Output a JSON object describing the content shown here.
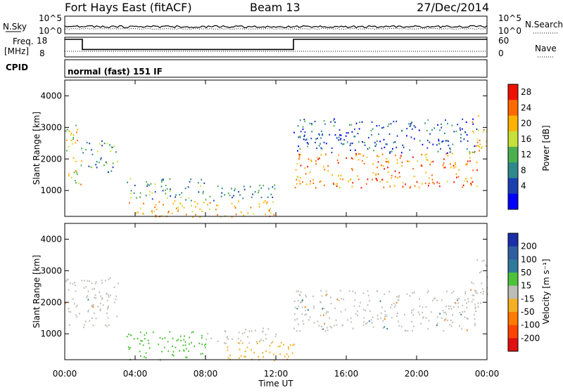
{
  "header": {
    "station": "Fort Hays East (fitACF)",
    "beam": "Beam 13",
    "date": "27/Dec/2014"
  },
  "status_panels": {
    "nsky_label": "N.Sky",
    "nsky_ticks": [
      "10^5",
      "10^0"
    ],
    "nsearch_label": "N.Search",
    "nsearch_ticks": [
      "10^5",
      "10^0"
    ],
    "freq_label_1": "Freq.",
    "freq_label_2": "[MHz]",
    "freq_ticks": [
      "18",
      "8"
    ],
    "nave_label": "Nave",
    "nave_ticks": [
      "60",
      "0"
    ],
    "cpid_label": "CPID",
    "cpid_text": "normal (fast) 151 IF"
  },
  "axes": {
    "x_label": "Time UT",
    "x_ticks": [
      "00:00",
      "04:00",
      "08:00",
      "12:00",
      "16:00",
      "20:00",
      "00:00"
    ],
    "y_label": "Slant Range [km]",
    "y_ticks": [
      "1000",
      "2000",
      "3000",
      "4000"
    ]
  },
  "colorbars": {
    "power_label": "Power [dB]",
    "power_ticks": [
      "28",
      "24",
      "20",
      "16",
      "12",
      "8",
      "4"
    ],
    "velocity_label": "Velocity [m s⁻¹]",
    "velocity_ticks": [
      "200",
      "100",
      "50",
      "15",
      "-15",
      "-50",
      "-100",
      "-200"
    ]
  },
  "chart_data": [
    {
      "type": "heatmap",
      "title": "Fort Hays East (fitACF) Beam 13 27/Dec/2014",
      "quantity": "Power",
      "xlabel": "Time UT",
      "ylabel": "Slant Range [km]",
      "x_range_hours": [
        0,
        24
      ],
      "y_range_km": [
        180,
        4500
      ],
      "colorbar": {
        "label": "Power [dB]",
        "range": [
          0,
          32
        ],
        "ticks": [
          4,
          8,
          12,
          16,
          20,
          24,
          28
        ]
      },
      "scatter_regions": [
        {
          "t_start": 0.0,
          "t_end": 1.0,
          "range_min": 1200,
          "range_max": 3100,
          "mean_power": 20
        },
        {
          "t_start": 1.0,
          "t_end": 3.0,
          "range_min": 1600,
          "range_max": 2600,
          "mean_power": 14
        },
        {
          "t_start": 3.5,
          "t_end": 8.0,
          "range_min": 700,
          "range_max": 1400,
          "mean_power": 14
        },
        {
          "t_start": 3.5,
          "t_end": 12.0,
          "range_min": 180,
          "range_max": 700,
          "mean_power": 24
        },
        {
          "t_start": 8.0,
          "t_end": 12.0,
          "range_min": 700,
          "range_max": 1200,
          "mean_power": 12
        },
        {
          "t_start": 13.0,
          "t_end": 23.5,
          "range_min": 1100,
          "range_max": 2200,
          "mean_power": 26
        },
        {
          "t_start": 13.0,
          "t_end": 23.5,
          "range_min": 2200,
          "range_max": 3300,
          "mean_power": 10
        },
        {
          "t_start": 23.0,
          "t_end": 24.0,
          "range_min": 2200,
          "range_max": 3400,
          "mean_power": 24
        }
      ]
    },
    {
      "type": "heatmap",
      "quantity": "Velocity",
      "xlabel": "Time UT",
      "ylabel": "Slant Range [km]",
      "x_range_hours": [
        0,
        24
      ],
      "y_range_km": [
        180,
        4500
      ],
      "colorbar": {
        "label": "Velocity [m s⁻¹]",
        "range": [
          -200,
          200
        ],
        "ticks": [
          200,
          100,
          50,
          15,
          -15,
          -50,
          -100,
          -200
        ]
      },
      "scatter_regions": [
        {
          "t_start": 0.0,
          "t_end": 3.0,
          "range_min": 1200,
          "range_max": 2800,
          "velocity": "ground scatter (|v|<15)"
        },
        {
          "t_start": 3.5,
          "t_end": 8.0,
          "range_min": 180,
          "range_max": 1100,
          "velocity": 30
        },
        {
          "t_start": 8.0,
          "t_end": 12.0,
          "range_min": 700,
          "range_max": 1200,
          "velocity": "ground scatter (|v|<15)"
        },
        {
          "t_start": 9.0,
          "t_end": 13.0,
          "range_min": 180,
          "range_max": 800,
          "velocity": -40
        },
        {
          "t_start": 13.0,
          "t_end": 23.5,
          "range_min": 1100,
          "range_max": 2400,
          "velocity": "ground scatter (|v|<15)"
        },
        {
          "t_start": 23.0,
          "t_end": 24.0,
          "range_min": 2000,
          "range_max": 3400,
          "velocity": "ground scatter (|v|<15)"
        }
      ]
    },
    {
      "type": "line",
      "quantity": "Frequency",
      "xlabel": "Time UT",
      "ylabel": "Freq. [MHz]",
      "y_range": [
        8,
        18
      ],
      "x_hours": [
        0,
        1,
        1,
        13,
        13,
        24
      ],
      "y_values": [
        18,
        18,
        10,
        10,
        18,
        18
      ]
    }
  ]
}
